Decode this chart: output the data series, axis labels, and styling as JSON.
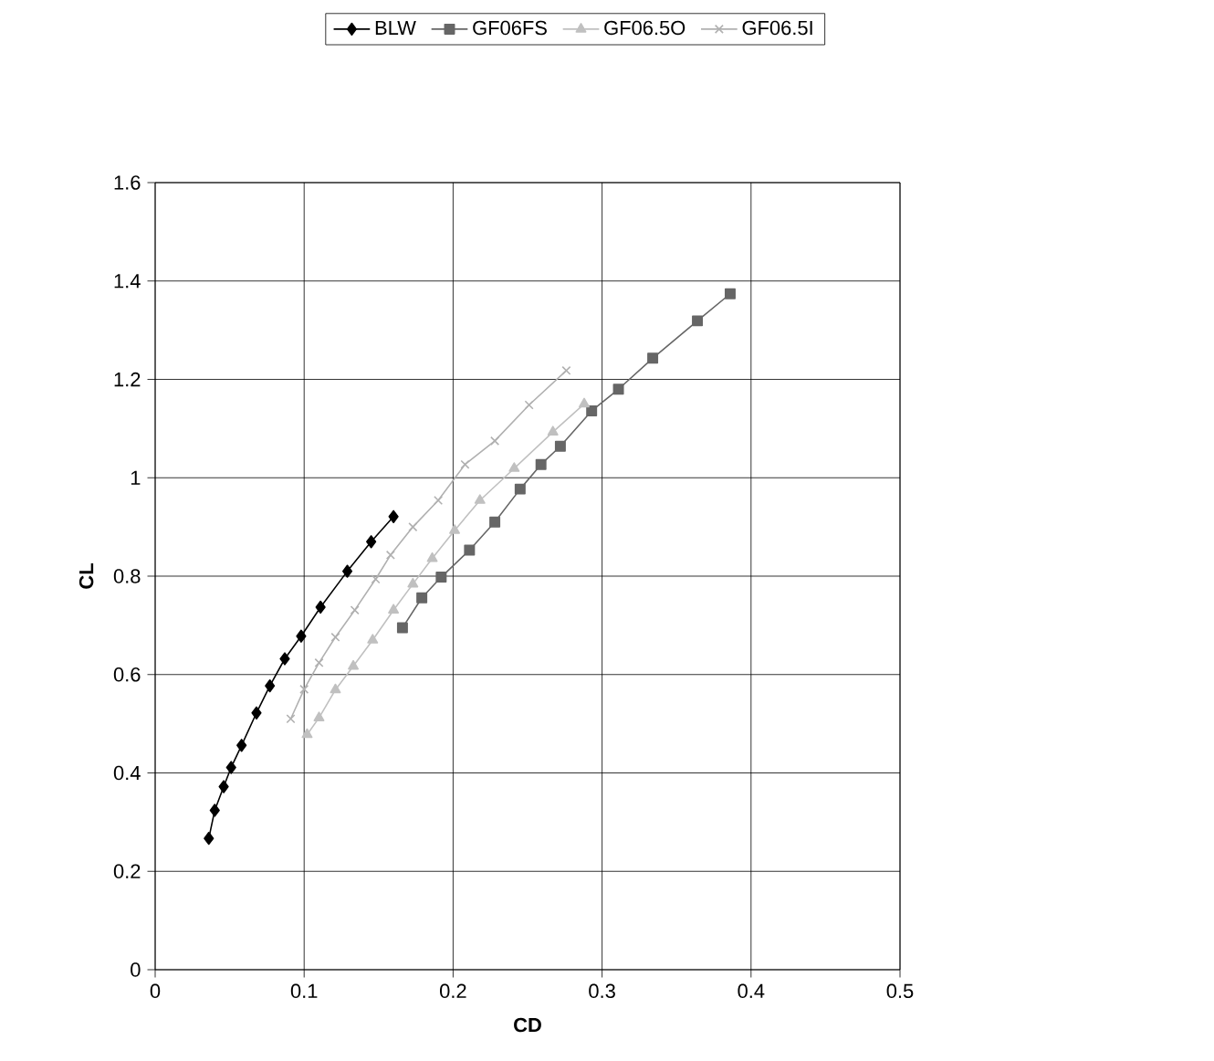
{
  "chart_data": {
    "type": "line",
    "xlabel": "CD",
    "ylabel": "CL",
    "xlim": [
      0,
      0.5
    ],
    "ylim": [
      0,
      1.6
    ],
    "xticks": [
      0,
      0.1,
      0.2,
      0.3,
      0.4,
      0.5
    ],
    "yticks": [
      0,
      0.2,
      0.4,
      0.6,
      0.8,
      1,
      1.2,
      1.4,
      1.6
    ],
    "grid": true,
    "legend": "top",
    "line_style": "solid",
    "series": [
      {
        "name": "BLW",
        "color": "#000000",
        "marker": "diamond",
        "x": [
          0.036,
          0.04,
          0.046,
          0.051,
          0.058,
          0.068,
          0.077,
          0.087,
          0.098,
          0.111,
          0.129,
          0.145,
          0.16
        ],
        "values": [
          0.267,
          0.324,
          0.372,
          0.411,
          0.456,
          0.522,
          0.577,
          0.632,
          0.678,
          0.737,
          0.81,
          0.87,
          0.921
        ]
      },
      {
        "name": "GF06FS",
        "color": "#666666",
        "marker": "square",
        "x": [
          0.166,
          0.179,
          0.192,
          0.211,
          0.228,
          0.245,
          0.259,
          0.272,
          0.293,
          0.311,
          0.334,
          0.364,
          0.386
        ],
        "values": [
          0.695,
          0.756,
          0.798,
          0.853,
          0.91,
          0.977,
          1.027,
          1.064,
          1.136,
          1.18,
          1.243,
          1.319,
          1.374
        ]
      },
      {
        "name": "GF06.5O",
        "color": "#c0c0c0",
        "marker": "triangle",
        "x": [
          0.102,
          0.11,
          0.121,
          0.133,
          0.146,
          0.16,
          0.173,
          0.186,
          0.201,
          0.218,
          0.241,
          0.267,
          0.288
        ],
        "values": [
          0.478,
          0.512,
          0.569,
          0.617,
          0.67,
          0.731,
          0.784,
          0.836,
          0.893,
          0.954,
          1.019,
          1.093,
          1.15
        ]
      },
      {
        "name": "GF06.5I",
        "color": "#b0b0b0",
        "marker": "cross",
        "x": [
          0.091,
          0.1,
          0.11,
          0.121,
          0.134,
          0.148,
          0.158,
          0.173,
          0.19,
          0.208,
          0.228,
          0.251,
          0.276
        ],
        "values": [
          0.51,
          0.57,
          0.624,
          0.676,
          0.731,
          0.794,
          0.843,
          0.9,
          0.954,
          1.027,
          1.075,
          1.148,
          1.218
        ]
      }
    ]
  }
}
